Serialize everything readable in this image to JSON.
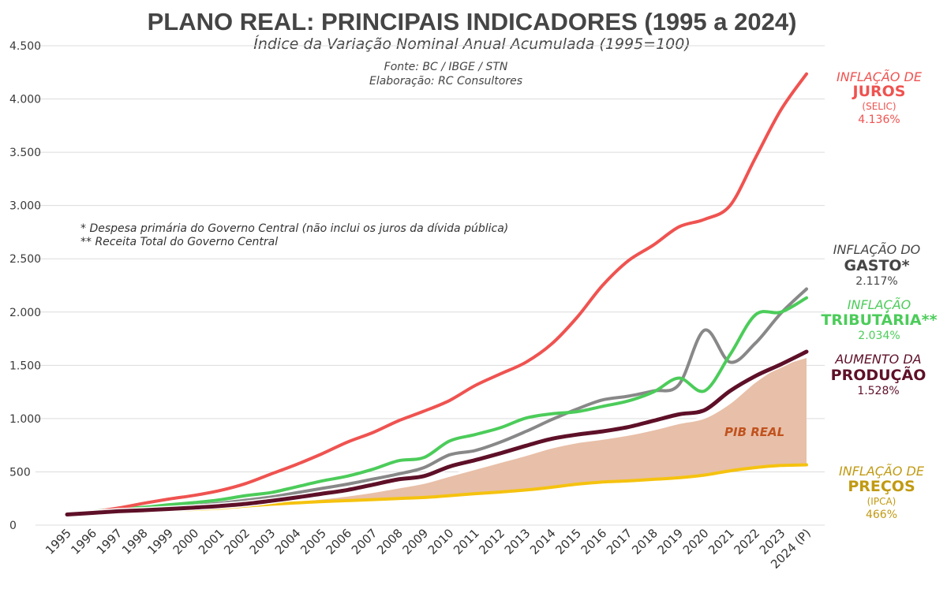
{
  "chart_data": {
    "type": "line",
    "title": "PLANO REAL: PRINCIPAIS INDICADORES (1995 a 2024)",
    "subtitle": "Índice da Variação Nominal Anual Acumulada (1995=100)",
    "source_line1": "Fonte: BC / IBGE / STN",
    "source_line2": "Elaboração: RC Consultores",
    "note1": "* Despesa primária do Governo Central (não inclui os juros da dívida pública)",
    "note2": "** Receita Total do Governo Central",
    "categories": [
      "1995",
      "1996",
      "1997",
      "1998",
      "1999",
      "2000",
      "2001",
      "2002",
      "2003",
      "2004",
      "2005",
      "2006",
      "2007",
      "2008",
      "2009",
      "2010",
      "2011",
      "2012",
      "2013",
      "2014",
      "2015",
      "2016",
      "2017",
      "2018",
      "2019",
      "2020",
      "2021",
      "2022",
      "2023",
      "2024 (P)"
    ],
    "y_ticks": [
      {
        "value": 0,
        "label": "0"
      },
      {
        "value": 500,
        "label": "500"
      },
      {
        "value": 1000,
        "label": "1.000"
      },
      {
        "value": 1500,
        "label": "1.500"
      },
      {
        "value": 2000,
        "label": "2.000"
      },
      {
        "value": 2500,
        "label": "2.500"
      },
      {
        "value": 3000,
        "label": "3.000"
      },
      {
        "value": 3500,
        "label": "3.500"
      },
      {
        "value": 4000,
        "label": "4.000"
      },
      {
        "value": 4500,
        "label": "4.500"
      }
    ],
    "ylim": [
      0,
      4500
    ],
    "area": {
      "name": "PIB REAL",
      "color": "#e8bfa8",
      "values": [
        100,
        110,
        121,
        130,
        142,
        155,
        170,
        187,
        207,
        227,
        252,
        280,
        314,
        355,
        398,
        465,
        530,
        595,
        660,
        730,
        780,
        812,
        850,
        900,
        960,
        1010,
        1150,
        1350,
        1500,
        1580
      ]
    },
    "series": [
      {
        "key": "juros",
        "name": "Juros",
        "color": "#ef5350",
        "width": 4,
        "values": [
          100,
          125,
          160,
          205,
          245,
          280,
          325,
          390,
          480,
          570,
          670,
          780,
          870,
          980,
          1070,
          1170,
          1310,
          1420,
          1530,
          1700,
          1950,
          2250,
          2480,
          2630,
          2800,
          2870,
          3000,
          3450,
          3900,
          4236
        ]
      },
      {
        "key": "gasto",
        "name": "Gasto",
        "color": "#888888",
        "width": 4,
        "values": [
          100,
          112,
          128,
          146,
          163,
          183,
          205,
          234,
          264,
          304,
          345,
          385,
          432,
          480,
          540,
          660,
          700,
          780,
          880,
          990,
          1090,
          1175,
          1210,
          1260,
          1320,
          1830,
          1530,
          1710,
          1990,
          2217
        ]
      },
      {
        "key": "tributaria",
        "name": "Tributária",
        "color": "#4ccc5a",
        "width": 4,
        "values": [
          100,
          128,
          152,
          167,
          192,
          212,
          238,
          277,
          306,
          360,
          415,
          460,
          525,
          605,
          635,
          790,
          850,
          915,
          1005,
          1045,
          1065,
          1115,
          1165,
          1250,
          1380,
          1260,
          1600,
          1975,
          2000,
          2134
        ]
      },
      {
        "key": "producao",
        "name": "Produção",
        "color": "#5e1028",
        "width": 5,
        "values": [
          100,
          115,
          130,
          140,
          152,
          165,
          180,
          200,
          228,
          260,
          295,
          330,
          380,
          430,
          460,
          550,
          610,
          675,
          745,
          810,
          850,
          880,
          920,
          980,
          1040,
          1080,
          1260,
          1400,
          1510,
          1628
        ]
      },
      {
        "key": "precos",
        "name": "Preços",
        "color": "#f5c20f",
        "width": 4,
        "values": [
          100,
          115,
          122,
          127,
          139,
          148,
          160,
          180,
          196,
          209,
          221,
          230,
          240,
          250,
          260,
          277,
          295,
          311,
          330,
          355,
          385,
          405,
          415,
          430,
          445,
          470,
          510,
          540,
          560,
          566
        ]
      }
    ],
    "right_labels": {
      "juros": {
        "line1": "INFLAÇÃO DE",
        "line2": "JUROS",
        "line3": "(SELIC)",
        "value": "4.136%",
        "color": "#ef5350"
      },
      "gasto": {
        "line1": "INFLAÇÃO DO",
        "line2": "GASTO*",
        "value": "2.117%",
        "color": "#454545"
      },
      "tributaria": {
        "line1": "INFLAÇÃO",
        "line2": "TRIBUTÁRIA**",
        "value": "2.034%",
        "color": "#4ccc5a"
      },
      "producao": {
        "line1": "AUMENTO DA",
        "line2": "PRODUÇÃO",
        "value": "1.528%",
        "color": "#5e1028"
      },
      "precos": {
        "line1": "INFLAÇÃO DE",
        "line2": "PREÇOS",
        "line3": "(IPCA)",
        "value": "466%",
        "color": "#c19a12"
      }
    }
  }
}
